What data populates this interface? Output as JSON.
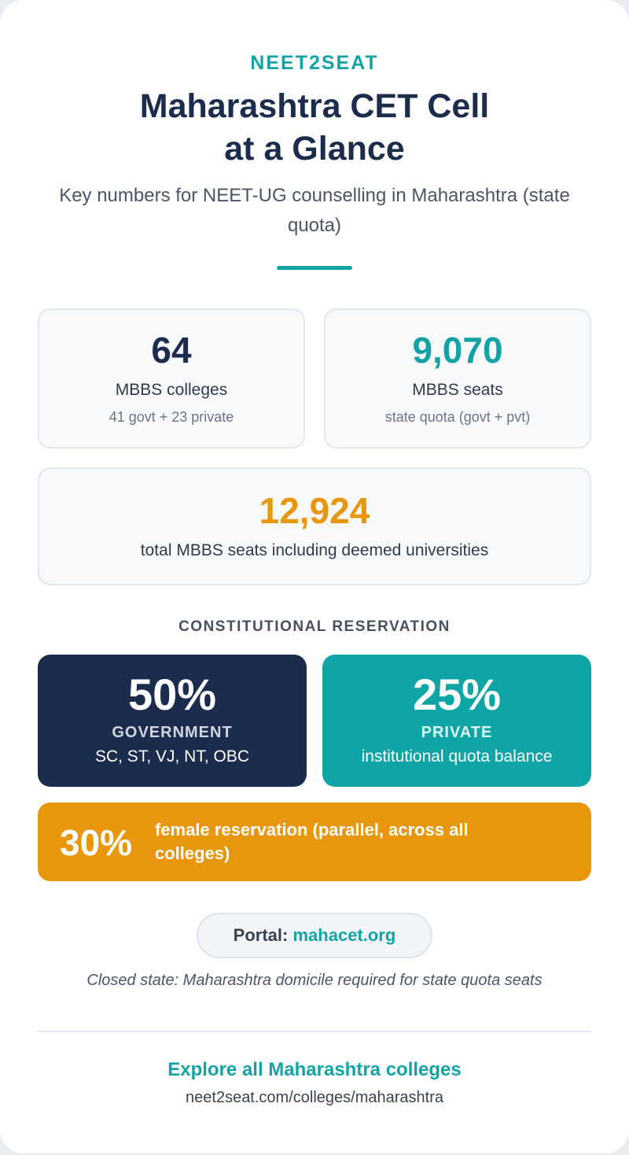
{
  "header": {
    "brand": "NEET2SEAT",
    "title_line1": "Maharashtra CET Cell",
    "title_line2": "at a Glance",
    "subtitle": "Key numbers for NEET-UG counselling in Maharashtra (state quota)"
  },
  "stats": {
    "colleges": {
      "value": "64",
      "label": "MBBS colleges",
      "sub": "41 govt + 23 private"
    },
    "seats": {
      "value": "9,070",
      "label": "MBBS seats",
      "sub": "state quota (govt + pvt)"
    },
    "total": {
      "value": "12,924",
      "label": "total MBBS seats including deemed universities"
    }
  },
  "reservation": {
    "heading": "CONSTITUTIONAL RESERVATION",
    "government": {
      "pct": "50%",
      "category": "GOVERNMENT",
      "detail": "SC, ST, VJ, NT, OBC"
    },
    "private": {
      "pct": "25%",
      "category": "PRIVATE",
      "detail": "institutional quota balance"
    },
    "female": {
      "pct": "30%",
      "text": "female reservation (parallel, across all colleges)"
    }
  },
  "portal": {
    "label": "Portal:",
    "link": "mahacet.org"
  },
  "note": "Closed state: Maharashtra domicile required for state quota seats",
  "footer": {
    "explore": "Explore all Maharashtra colleges",
    "url": "neet2seat.com/colleges/maharashtra"
  },
  "colors": {
    "navy": "#1b2c4d",
    "teal": "#14a3a5",
    "orange": "#e8970c"
  }
}
